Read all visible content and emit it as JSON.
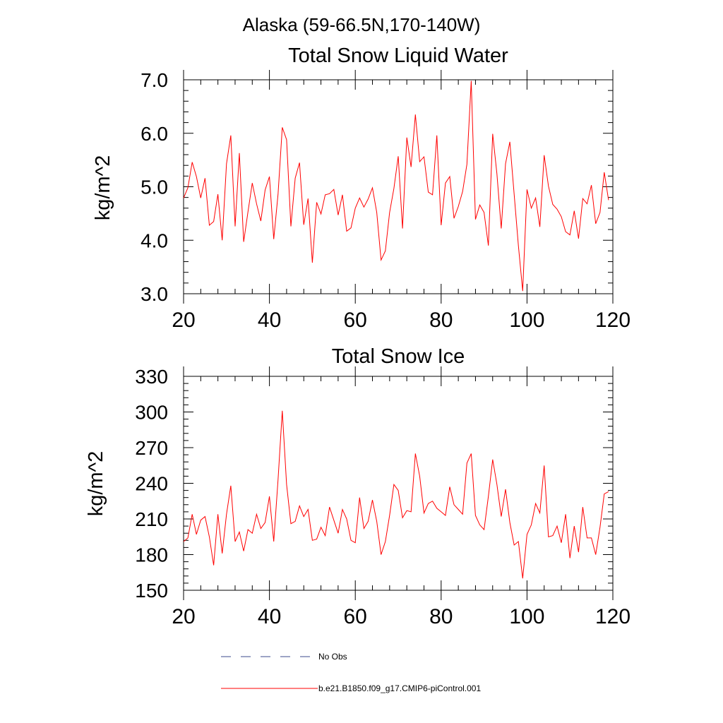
{
  "figure": {
    "title": "Alaska (59-66.5N,170-140W)"
  },
  "colors": {
    "series": "#ff0000",
    "obs": "#3b4a8c",
    "axes": "#000000"
  },
  "legend": {
    "items": [
      {
        "label": "No Obs",
        "style": "dashed",
        "color": "#3b4a8c"
      },
      {
        "label": "b.e21.B1850.f09_g17.CMIP6-piControl.001",
        "style": "solid",
        "color": "#ff0000"
      }
    ]
  },
  "chart_data": [
    {
      "type": "line",
      "title": "Total Snow Liquid Water",
      "xlabel": "",
      "ylabel": "kg/m^2",
      "xlim": [
        20,
        120
      ],
      "ylim": [
        3.0,
        7.0
      ],
      "xticks": [
        20,
        40,
        60,
        80,
        100,
        120
      ],
      "yticks": [
        3.0,
        4.0,
        5.0,
        6.0,
        7.0
      ],
      "ytick_labels": [
        "3.0",
        "4.0",
        "5.0",
        "6.0",
        "7.0"
      ],
      "grid": false,
      "series": [
        {
          "name": "b.e21.B1850.f09_g17.CMIP6-piControl.001",
          "x": [
            20,
            21,
            22,
            23,
            24,
            25,
            26,
            27,
            28,
            29,
            30,
            31,
            32,
            33,
            34,
            35,
            36,
            37,
            38,
            39,
            40,
            41,
            42,
            43,
            44,
            45,
            46,
            47,
            48,
            49,
            50,
            51,
            52,
            53,
            54,
            55,
            56,
            57,
            58,
            59,
            60,
            61,
            62,
            63,
            64,
            65,
            66,
            67,
            68,
            69,
            70,
            71,
            72,
            73,
            74,
            75,
            76,
            77,
            78,
            79,
            80,
            81,
            82,
            83,
            84,
            85,
            86,
            87,
            88,
            89,
            90,
            91,
            92,
            93,
            94,
            95,
            96,
            97,
            98,
            99,
            100,
            101,
            102,
            103,
            104,
            105,
            106,
            107,
            108,
            109,
            110,
            111,
            112,
            113,
            114,
            115,
            116,
            117,
            118,
            119
          ],
          "y": [
            4.79,
            4.98,
            5.46,
            5.19,
            4.79,
            5.16,
            4.28,
            4.35,
            4.86,
            4.0,
            5.43,
            5.96,
            4.26,
            5.63,
            3.97,
            4.53,
            5.07,
            4.68,
            4.36,
            4.94,
            5.19,
            4.02,
            4.86,
            6.11,
            5.88,
            4.26,
            5.16,
            5.45,
            4.29,
            4.78,
            3.58,
            4.71,
            4.49,
            4.85,
            4.87,
            4.95,
            4.47,
            4.85,
            4.17,
            4.23,
            4.6,
            4.79,
            4.62,
            4.77,
            4.98,
            4.52,
            3.63,
            3.8,
            4.52,
            4.97,
            5.57,
            4.22,
            5.92,
            5.37,
            6.35,
            5.47,
            5.56,
            4.9,
            4.85,
            5.96,
            4.28,
            5.07,
            5.19,
            4.41,
            4.63,
            4.91,
            5.42,
            6.98,
            4.39,
            4.66,
            4.52,
            3.9,
            5.99,
            5.24,
            4.22,
            5.43,
            5.84,
            4.86,
            3.9,
            3.05,
            4.95,
            4.6,
            4.79,
            4.25,
            5.59,
            5.01,
            4.67,
            4.58,
            4.44,
            4.16,
            4.1,
            4.55,
            4.03,
            4.78,
            4.68,
            5.03,
            4.31,
            4.52,
            5.27,
            4.75
          ]
        }
      ]
    },
    {
      "type": "line",
      "title": "Total Snow Ice",
      "xlabel": "",
      "ylabel": "kg/m^2",
      "xlim": [
        20,
        120
      ],
      "ylim": [
        150,
        330
      ],
      "xticks": [
        20,
        40,
        60,
        80,
        100,
        120
      ],
      "yticks": [
        150,
        180,
        210,
        240,
        270,
        300,
        330
      ],
      "ytick_labels": [
        "150",
        "180",
        "210",
        "240",
        "270",
        "300",
        "330"
      ],
      "grid": false,
      "series": [
        {
          "name": "b.e21.B1850.f09_g17.CMIP6-piControl.001",
          "x": [
            20,
            21,
            22,
            23,
            24,
            25,
            26,
            27,
            28,
            29,
            30,
            31,
            32,
            33,
            34,
            35,
            36,
            37,
            38,
            39,
            40,
            41,
            42,
            43,
            44,
            45,
            46,
            47,
            48,
            49,
            50,
            51,
            52,
            53,
            54,
            55,
            56,
            57,
            58,
            59,
            60,
            61,
            62,
            63,
            64,
            65,
            66,
            67,
            68,
            69,
            70,
            71,
            72,
            73,
            74,
            75,
            76,
            77,
            78,
            79,
            80,
            81,
            82,
            83,
            84,
            85,
            86,
            87,
            88,
            89,
            90,
            91,
            92,
            93,
            94,
            95,
            96,
            97,
            98,
            99,
            100,
            101,
            102,
            103,
            104,
            105,
            106,
            107,
            108,
            109,
            110,
            111,
            112,
            113,
            114,
            115,
            116,
            117,
            118,
            119
          ],
          "y": [
            191,
            194,
            214,
            197,
            209,
            212,
            195,
            171,
            214,
            181,
            214,
            238,
            191,
            199,
            183,
            201,
            198,
            214,
            202,
            207,
            229,
            191,
            243,
            301,
            239,
            206,
            208,
            221,
            212,
            218,
            192,
            193,
            203,
            196,
            220,
            209,
            198,
            218,
            210,
            192,
            190,
            228,
            202,
            208,
            226,
            208,
            180,
            191,
            213,
            239,
            234,
            211,
            217,
            216,
            265,
            246,
            215,
            223,
            225,
            219,
            216,
            213,
            237,
            222,
            218,
            214,
            257,
            265,
            213,
            205,
            201,
            229,
            260,
            239,
            212,
            235,
            207,
            188,
            191,
            160,
            197,
            205,
            223,
            215,
            255,
            195,
            196,
            204,
            190,
            214,
            177,
            204,
            182,
            220,
            194,
            194,
            180,
            203,
            231,
            233
          ]
        }
      ]
    }
  ]
}
